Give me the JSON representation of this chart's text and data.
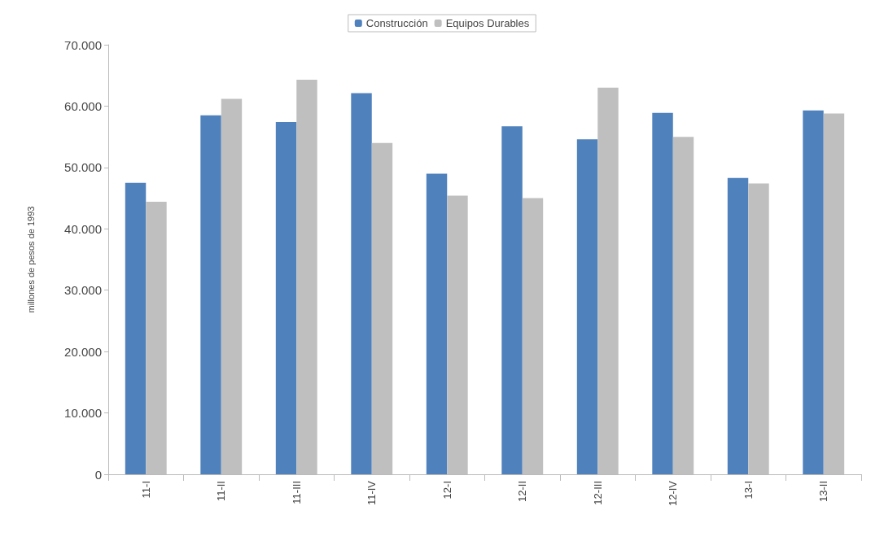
{
  "chart_data": {
    "type": "bar",
    "ylabel": "millones de pesos de 1993",
    "categories": [
      "11-I",
      "11-II",
      "11-III",
      "11-IV",
      "12-I",
      "12-II",
      "12-III",
      "12-IV",
      "13-I",
      "13-II"
    ],
    "series": [
      {
        "name": "Construcción",
        "color": "#4f81bd",
        "values": [
          47500,
          58500,
          57400,
          62100,
          49000,
          56700,
          54600,
          58900,
          48300,
          59300
        ]
      },
      {
        "name": "Equipos Durables",
        "color": "#bfbfbf",
        "values": [
          44400,
          61200,
          64300,
          54000,
          45400,
          45000,
          63000,
          55000,
          47400,
          58800
        ]
      }
    ],
    "ylim": [
      0,
      70000
    ],
    "yticks": [
      0,
      {
        "value": 10000,
        "label": "10.000"
      },
      {
        "value": 20000,
        "label": "20.000"
      },
      {
        "value": 30000,
        "label": "30.000"
      },
      {
        "value": 40000,
        "label": "40.000"
      },
      {
        "value": 50000,
        "label": "50.000"
      },
      {
        "value": 60000,
        "label": "60.000"
      },
      {
        "value": 70000,
        "label": "70.000"
      }
    ],
    "grid": false,
    "legend": "top"
  }
}
